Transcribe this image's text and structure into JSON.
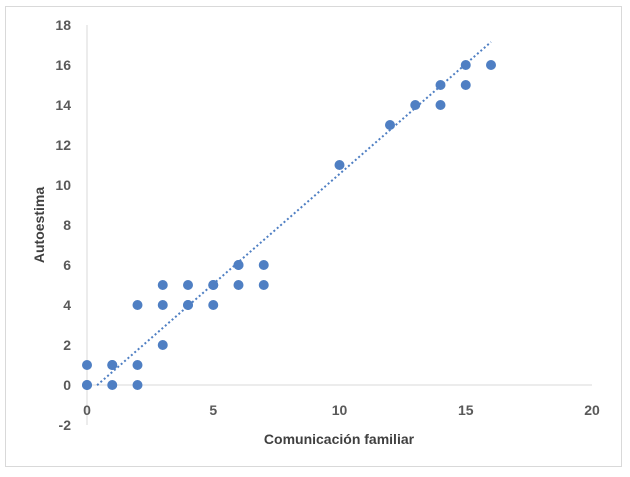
{
  "chart_data": {
    "type": "scatter",
    "title": "",
    "xlabel": "Comunicación familiar",
    "ylabel": "Autoestima",
    "xlim": [
      0,
      20
    ],
    "ylim": [
      -2,
      18
    ],
    "x_ticks": [
      0,
      5,
      10,
      15,
      20
    ],
    "y_ticks": [
      -2,
      0,
      2,
      4,
      6,
      8,
      10,
      12,
      14,
      16,
      18
    ],
    "grid": false,
    "legend": "none",
    "colors": {
      "points": "#4f7fc3",
      "trendline": "#4f7fc3",
      "axis": "#d9d9d9",
      "frame": "#d9d9d9"
    },
    "series": [
      {
        "points": [
          [
            0,
            1
          ],
          [
            0,
            0
          ],
          [
            0,
            0
          ],
          [
            1,
            1
          ],
          [
            1,
            1
          ],
          [
            1,
            0
          ],
          [
            2,
            4
          ],
          [
            2,
            1
          ],
          [
            2,
            0
          ],
          [
            3,
            5
          ],
          [
            3,
            4
          ],
          [
            3,
            2
          ],
          [
            4,
            5
          ],
          [
            4,
            4
          ],
          [
            4,
            4
          ],
          [
            5,
            5
          ],
          [
            5,
            5
          ],
          [
            5,
            4
          ],
          [
            6,
            6
          ],
          [
            6,
            6
          ],
          [
            6,
            5
          ],
          [
            7,
            6
          ],
          [
            7,
            5
          ],
          [
            10,
            11
          ],
          [
            12,
            13
          ],
          [
            13,
            14
          ],
          [
            14,
            15
          ],
          [
            14,
            14
          ],
          [
            15,
            16
          ],
          [
            15,
            15
          ],
          [
            16,
            16
          ]
        ]
      }
    ],
    "trendline": {
      "style": "dotted",
      "x_range": [
        0.4,
        16
      ],
      "slope": 1.1,
      "intercept": -0.45
    }
  }
}
